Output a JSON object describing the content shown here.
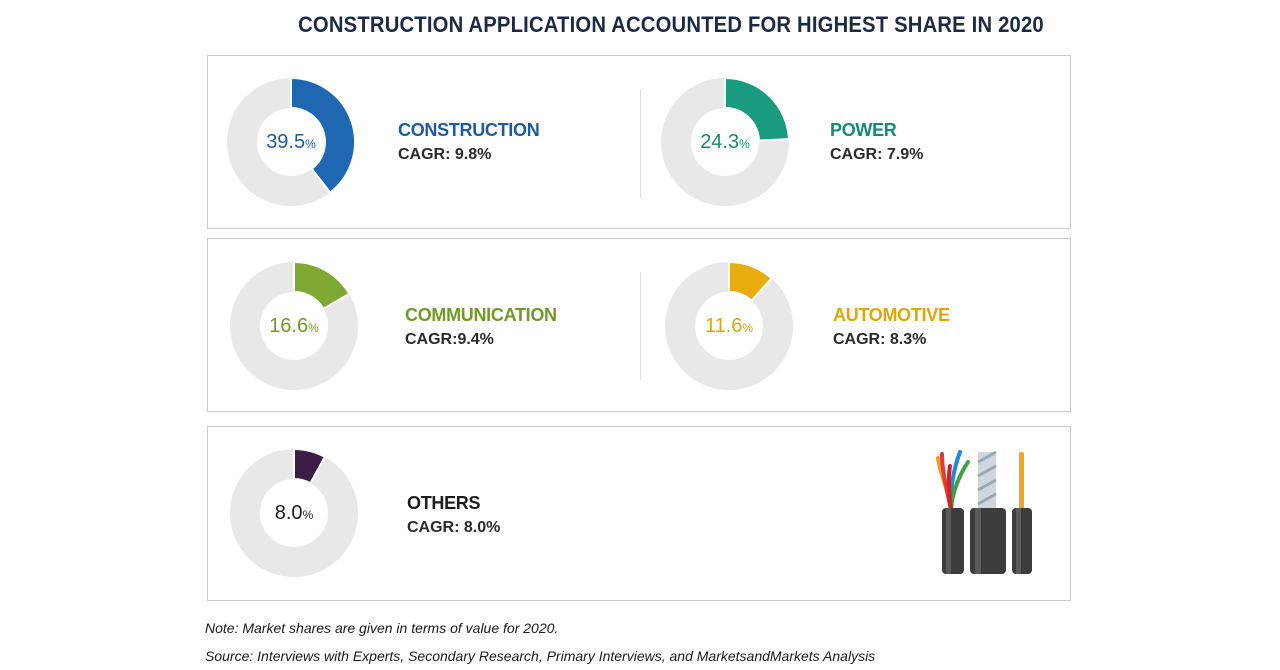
{
  "title": "CONSTRUCTION APPLICATION ACCOUNTED FOR HIGHEST SHARE IN 2020",
  "chart_data": {
    "type": "pie",
    "title": "CONSTRUCTION APPLICATION ACCOUNTED FOR HIGHEST SHARE IN 2020",
    "categories": [
      "CONSTRUCTION",
      "POWER",
      "COMMUNICATION",
      "AUTOMOTIVE",
      "OTHERS"
    ],
    "values": [
      39.5,
      24.3,
      16.6,
      11.6,
      8.0
    ],
    "unit": "%",
    "segments": [
      {
        "name": "CONSTRUCTION",
        "share": 39.5,
        "share_label": "39.5",
        "cagr": "CAGR: 9.8%",
        "color": "#1f67b1",
        "text_color": "#1f5a9e"
      },
      {
        "name": "POWER",
        "share": 24.3,
        "share_label": "24.3",
        "cagr": "CAGR: 7.9%",
        "color": "#1a9a7f",
        "text_color": "#168a70"
      },
      {
        "name": "COMMUNICATION",
        "share": 16.6,
        "share_label": "16.6",
        "cagr": "CAGR:9.4%",
        "color": "#7fa832",
        "text_color": "#6f9a28"
      },
      {
        "name": "AUTOMOTIVE",
        "share": 11.6,
        "share_label": "11.6",
        "cagr": "CAGR: 8.3%",
        "color": "#e6ad0c",
        "text_color": "#e0a50a"
      },
      {
        "name": "OTHERS",
        "share": 8.0,
        "share_label": "8.0",
        "cagr": "CAGR: 8.0%",
        "color": "#3b1d45",
        "text_color": "#1d1d1d"
      }
    ],
    "track_color": "#e8e8e8"
  },
  "percent_unit": "%",
  "note": "Note: Market shares are given in terms of value for 2020.",
  "source": "Source: Interviews with Experts, Secondary Research, Primary Interviews, and MarketsandMarkets Analysis",
  "decoration_icon": "cables-icon"
}
